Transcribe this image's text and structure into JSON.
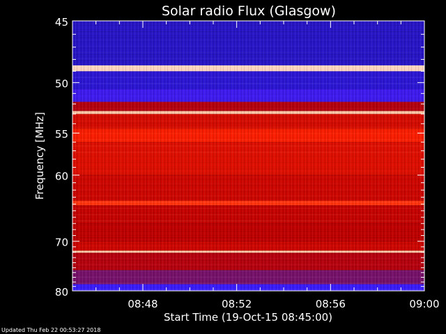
{
  "chart_data": {
    "type": "heatmap",
    "title": "Solar radio Flux (Glasgow)",
    "xlabel": "Start Time (19-Oct-15 08:45:00)",
    "ylabel": "Frequency [MHz]",
    "x_range": [
      "08:45",
      "09:00"
    ],
    "x_ticks": [
      "08:48",
      "08:52",
      "08:56",
      "09:00"
    ],
    "x_tick_minutes": [
      3,
      7,
      11,
      15
    ],
    "ylim": [
      45,
      80
    ],
    "y_ticks": [
      45,
      50,
      55,
      60,
      70,
      80
    ],
    "y_scale": "reciprocal",
    "colormap": [
      "#000000",
      "#1a10a0",
      "#3a1cff",
      "#7a1060",
      "#c00000",
      "#ff2000",
      "#ff8a4a",
      "#ffffff"
    ],
    "frequency_bands": [
      {
        "from": 45.0,
        "to": 48.5,
        "level": 0.2
      },
      {
        "from": 48.5,
        "to": 49.0,
        "level": 0.95
      },
      {
        "from": 49.0,
        "to": 50.6,
        "level": 0.22
      },
      {
        "from": 50.6,
        "to": 51.8,
        "level": 0.3
      },
      {
        "from": 51.8,
        "to": 52.7,
        "level": 0.55
      },
      {
        "from": 52.7,
        "to": 53.0,
        "level": 0.93
      },
      {
        "from": 53.0,
        "to": 54.5,
        "level": 0.62
      },
      {
        "from": 54.5,
        "to": 56.0,
        "level": 0.7
      },
      {
        "from": 56.0,
        "to": 60.0,
        "level": 0.64
      },
      {
        "from": 60.0,
        "to": 63.5,
        "level": 0.6
      },
      {
        "from": 63.5,
        "to": 64.2,
        "level": 0.74
      },
      {
        "from": 64.2,
        "to": 67.0,
        "level": 0.58
      },
      {
        "from": 67.0,
        "to": 70.0,
        "level": 0.57
      },
      {
        "from": 70.0,
        "to": 71.7,
        "level": 0.6
      },
      {
        "from": 71.7,
        "to": 72.1,
        "level": 0.93
      },
      {
        "from": 72.1,
        "to": 75.5,
        "level": 0.55
      },
      {
        "from": 75.5,
        "to": 78.5,
        "level": 0.42
      },
      {
        "from": 78.5,
        "to": 80.0,
        "level": 0.28
      }
    ]
  },
  "footer": {
    "updated": "Updated Thu Feb 22 00:53:27 2018"
  }
}
